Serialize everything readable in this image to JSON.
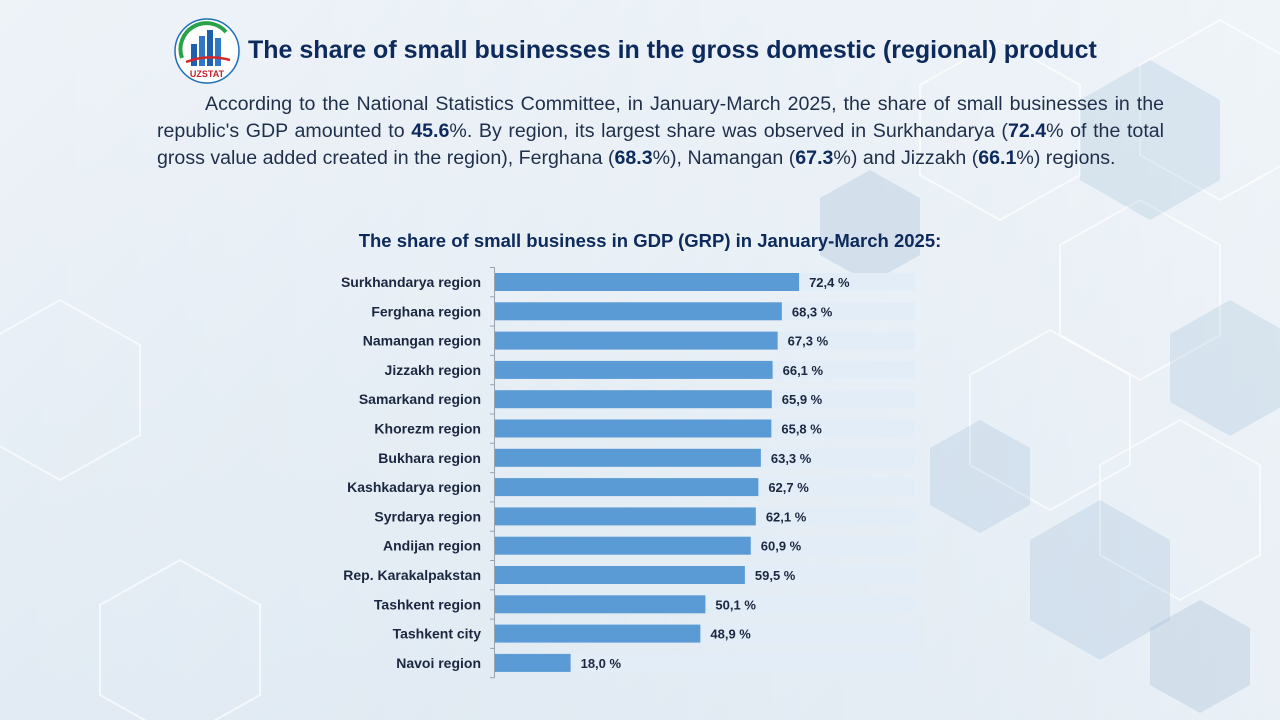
{
  "header": {
    "logo_text": "UZSTAT",
    "title": "The share of small businesses in the gross domestic (regional) product"
  },
  "paragraph": [
    {
      "text": "According to the National Statistics Committee, in January-March 2025, the share of small businesses in the republic's GDP amounted to ",
      "bold": false
    },
    {
      "text": "45.6",
      "bold": true
    },
    {
      "text": "%. By region, its largest share was observed in Surkhandarya (",
      "bold": false
    },
    {
      "text": "72.4",
      "bold": true
    },
    {
      "text": "% of the total gross value added created in the region), Ferghana (",
      "bold": false
    },
    {
      "text": "68.3",
      "bold": true
    },
    {
      "text": "%), Namangan (",
      "bold": false
    },
    {
      "text": "67.3",
      "bold": true
    },
    {
      "text": "%) and Jizzakh (",
      "bold": false
    },
    {
      "text": "66.1",
      "bold": true
    },
    {
      "text": "%) regions.",
      "bold": false
    }
  ],
  "chart_data": {
    "type": "bar",
    "orientation": "horizontal",
    "title": "The share of small business in GDP (GRP) in January-March 2025:",
    "xlabel": "",
    "ylabel": "",
    "xlim": [
      0,
      100
    ],
    "grid": false,
    "legend": "none",
    "categories": [
      "Surkhandarya region",
      "Ferghana region",
      "Namangan region",
      "Jizzakh region",
      "Samarkand region",
      "Khorezm region",
      "Bukhara region",
      "Kashkadarya region",
      "Syrdarya region",
      "Andijan region",
      "Rep. Karakalpakstan",
      "Tashkent region",
      "Tashkent city",
      "Navoi region"
    ],
    "values": [
      72.4,
      68.3,
      67.3,
      66.1,
      65.9,
      65.8,
      63.3,
      62.7,
      62.1,
      60.9,
      59.5,
      50.1,
      48.9,
      18.0
    ],
    "value_labels": [
      "72,4 %",
      "68,3 %",
      "67,3 %",
      "66,1 %",
      "65,9 %",
      "65,8 %",
      "63,3 %",
      "62,7 %",
      "62,1 %",
      "60,9 %",
      "59,5 %",
      "50,1 %",
      "48,9 %",
      "18,0 %"
    ],
    "colors": {
      "bar": "#5b9bd5",
      "track": "#e3edf8",
      "axis": "#9aa4b0"
    }
  }
}
